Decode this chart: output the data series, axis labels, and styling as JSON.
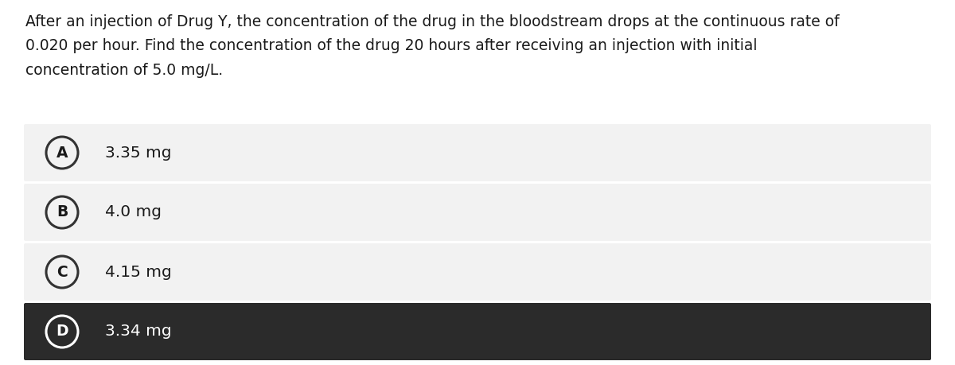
{
  "question_text": "After an injection of Drug Y, the concentration of the drug in the bloodstream drops at the continuous rate of\n0.020 per hour. Find the concentration of the drug 20 hours after receiving an injection with initial\nconcentration of 5.0 mg/L.",
  "options": [
    {
      "label": "A",
      "text": "3.35 mg",
      "selected": false
    },
    {
      "label": "B",
      "text": "4.0 mg",
      "selected": false
    },
    {
      "label": "C",
      "text": "4.15 mg",
      "selected": false
    },
    {
      "label": "D",
      "text": "3.34 mg",
      "selected": true
    }
  ],
  "bg_color": "#ffffff",
  "option_bg_normal": "#f2f2f2",
  "option_bg_selected": "#2b2b2b",
  "option_text_normal": "#1a1a1a",
  "option_text_selected": "#ffffff",
  "circle_edge_normal": "#333333",
  "circle_edge_selected": "#ffffff",
  "question_font_size": 13.5,
  "option_font_size": 14.5,
  "label_font_size": 13.5,
  "fig_width": 12.0,
  "fig_height": 4.59,
  "dpi": 100
}
